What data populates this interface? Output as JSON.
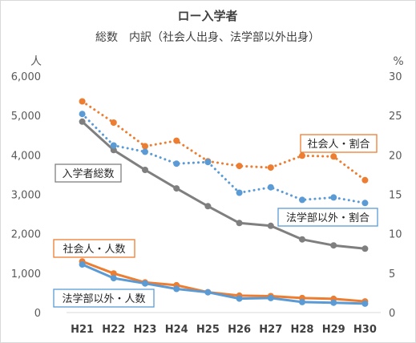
{
  "chart_data": {
    "type": "line",
    "title": "ロー入学者",
    "subtitle": "総数　内訳（社会人出身、法学部以外出身）",
    "categories": [
      "H21",
      "H22",
      "H23",
      "H24",
      "H25",
      "H26",
      "H27",
      "H28",
      "H29",
      "H30"
    ],
    "y_left": {
      "unit": "人",
      "ylim": [
        0,
        6000
      ],
      "ticks": [
        "0",
        "1,000",
        "2,000",
        "3,000",
        "4,000",
        "5,000",
        "6,000"
      ]
    },
    "y_right": {
      "unit": "%",
      "ylim": [
        0,
        30
      ],
      "ticks": [
        "0",
        "5",
        "10",
        "15",
        "20",
        "25",
        "30"
      ]
    },
    "grid": false,
    "series": [
      {
        "name": "入学者総数",
        "axis": "left",
        "style": "solid",
        "color": "#7f7f7f",
        "values": [
          4844,
          4122,
          3620,
          3150,
          2698,
          2272,
          2201,
          1857,
          1704,
          1621
        ]
      },
      {
        "name": "社会人・人数",
        "axis": "left",
        "style": "solid",
        "color": "#ed7d31",
        "values": [
          1298,
          993,
          764,
          693,
          517,
          429,
          416,
          368,
          347,
          282
        ]
      },
      {
        "name": "法学部以外・人数",
        "axis": "left",
        "style": "solid",
        "color": "#5b9bd5",
        "values": [
          1220,
          873,
          738,
          601,
          515,
          353,
          369,
          266,
          250,
          226
        ]
      },
      {
        "name": "社会人・割合",
        "axis": "right",
        "style": "dotted",
        "color": "#ed7d31",
        "values": [
          26.8,
          24.1,
          21.1,
          21.8,
          19.2,
          18.6,
          18.4,
          19.9,
          19.8,
          16.8
        ]
      },
      {
        "name": "法学部以外・割合",
        "axis": "right",
        "style": "dotted",
        "color": "#5b9bd5",
        "values": [
          25.2,
          21.2,
          20.4,
          18.9,
          19.1,
          15.2,
          15.9,
          14.3,
          14.6,
          13.9
        ]
      }
    ]
  }
}
